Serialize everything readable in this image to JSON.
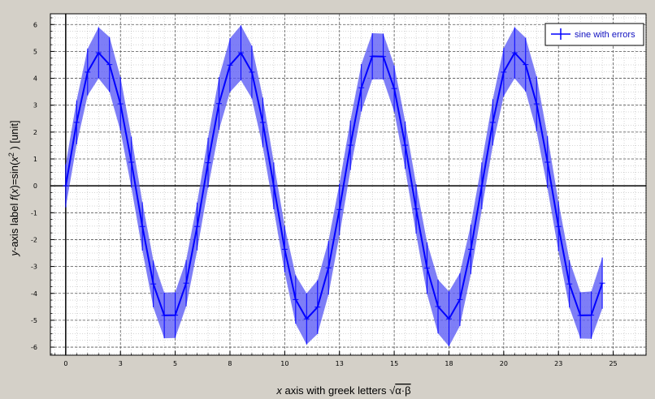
{
  "colors": {
    "background": "#d4d0c8",
    "plot_background": "#ffffff",
    "series_line": "#0000ff",
    "error_band": "#5a5af5",
    "grid": "#777777",
    "legend_text": "#1010c0"
  },
  "chart_data": {
    "type": "line",
    "title": "",
    "xlabel": {
      "italic_var": "x",
      "text": " axis with greek letters ",
      "radical": "α·β"
    },
    "ylabel": {
      "prefix": "y",
      "text_a": "-axis label ",
      "fvar": "f",
      "paren_open": "(",
      "xvar": "x",
      "text_b": ")=sin(",
      "x2var": "x",
      "sup": "2",
      "suffix": " ) [unit]"
    },
    "xlim": [
      -0.7,
      26.5
    ],
    "ylim": [
      -6.3,
      6.4
    ],
    "x_ticks": [
      {
        "value": 0,
        "label": "0"
      },
      {
        "value": 2.5,
        "label": "3"
      },
      {
        "value": 5,
        "label": "5"
      },
      {
        "value": 7.5,
        "label": "8"
      },
      {
        "value": 10,
        "label": "10"
      },
      {
        "value": 12.5,
        "label": "13"
      },
      {
        "value": 15,
        "label": "15"
      },
      {
        "value": 17.5,
        "label": "18"
      },
      {
        "value": 20,
        "label": "20"
      },
      {
        "value": 22.5,
        "label": "23"
      },
      {
        "value": 25,
        "label": "25"
      }
    ],
    "y_ticks": [
      {
        "value": 6,
        "label": "6"
      },
      {
        "value": 5,
        "label": "5"
      },
      {
        "value": 4,
        "label": "4"
      },
      {
        "value": 3,
        "label": "3"
      },
      {
        "value": 2,
        "label": "2"
      },
      {
        "value": 1,
        "label": "1"
      },
      {
        "value": 0,
        "label": "0"
      },
      {
        "value": -1,
        "label": "-1"
      },
      {
        "value": -2,
        "label": "-2"
      },
      {
        "value": -3,
        "label": "-3"
      },
      {
        "value": -4,
        "label": "-4"
      },
      {
        "value": -5,
        "label": "-5"
      },
      {
        "value": -6,
        "label": "-6"
      }
    ],
    "grid": true,
    "legend_position": "top-right",
    "series": [
      {
        "name": "sine with errors",
        "error_style": "band",
        "x": [
          0,
          0.5,
          1,
          1.5,
          2,
          2.5,
          3,
          3.5,
          4,
          4.5,
          5,
          5.5,
          6,
          6.5,
          7,
          7.5,
          8,
          8.5,
          9,
          9.5,
          10,
          10.5,
          11,
          11.5,
          12,
          12.5,
          13,
          13.5,
          14,
          14.5,
          15,
          15.5,
          16,
          16.5,
          17,
          17.5,
          18,
          18.5,
          19,
          19.5,
          20,
          20.5,
          21,
          21.5,
          22,
          22.5,
          23,
          23.5,
          24,
          24.5
        ],
        "y": [
          0.0,
          2.36,
          4.23,
          4.95,
          4.51,
          3.05,
          0.88,
          -1.51,
          -3.65,
          -4.82,
          -4.81,
          -3.62,
          -1.51,
          0.86,
          3.06,
          4.49,
          4.95,
          4.23,
          2.36,
          0.0,
          -2.36,
          -4.23,
          -4.95,
          -4.51,
          -3.05,
          -0.88,
          1.51,
          3.65,
          4.82,
          4.81,
          3.62,
          1.51,
          -0.86,
          -3.06,
          -4.49,
          -4.95,
          -4.23,
          -2.36,
          0.0,
          2.36,
          4.23,
          4.95,
          4.51,
          3.05,
          0.88,
          -1.51,
          -3.65,
          -4.82,
          -4.81,
          -3.62
        ],
        "error": [
          0.8,
          0.82,
          0.87,
          0.95,
          1.02,
          1.0,
          0.95,
          0.9,
          0.87,
          0.85,
          0.85,
          0.86,
          0.89,
          0.93,
          0.98,
          1.0,
          1.02,
          0.98,
          0.92,
          0.87,
          0.86,
          0.9,
          0.95,
          1.0,
          1.0,
          0.96,
          0.92,
          0.88,
          0.86,
          0.85,
          0.86,
          0.88,
          0.92,
          0.96,
          1.0,
          1.02,
          0.98,
          0.92,
          0.87,
          0.86,
          0.9,
          0.95,
          1.0,
          1.02,
          0.97,
          0.92,
          0.88,
          0.86,
          0.88,
          0.95
        ]
      }
    ]
  }
}
